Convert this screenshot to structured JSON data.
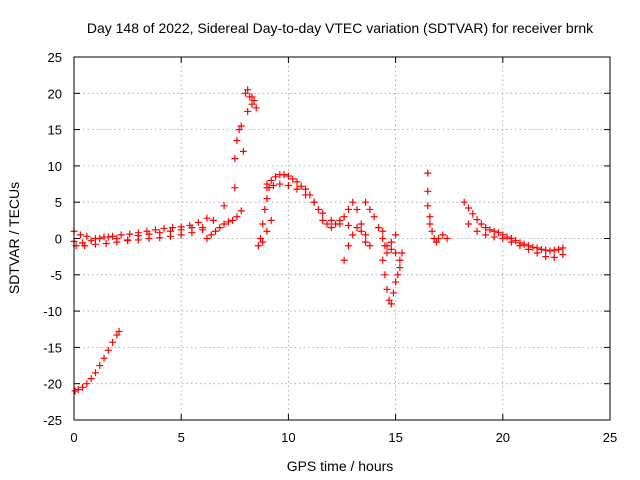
{
  "chart_data": {
    "type": "scatter",
    "title": "Day 148 of 2022, Sidereal Day-to-day VTEC variation (SDTVAR) for receiver brnk",
    "xlabel": "GPS time / hours",
    "ylabel": "SDTVAR / TECUs",
    "xlim": [
      0,
      25
    ],
    "ylim": [
      -25,
      25
    ],
    "xticks": [
      0,
      5,
      10,
      15,
      20,
      25
    ],
    "yticks": [
      -25,
      -20,
      -15,
      -10,
      -5,
      0,
      5,
      10,
      15,
      20,
      25
    ],
    "xtick_labels": [
      "0",
      "5",
      "10",
      "15",
      "20",
      "25"
    ],
    "ytick_labels": [
      "-25",
      "-20",
      "-15",
      "-10",
      "-5",
      "0",
      "5",
      "10",
      "15",
      "20",
      "25"
    ],
    "grid": true,
    "marker": "+",
    "color": "#ff0000",
    "series": [
      {
        "name": "SDTVAR",
        "x": [
          0.05,
          0.2,
          0.4,
          0.6,
          0.8,
          1.0,
          1.2,
          1.4,
          1.6,
          1.8,
          2.0,
          2.1,
          0.0,
          0.3,
          0.6,
          1.0,
          1.4,
          1.8,
          2.2,
          2.6,
          3.0,
          3.4,
          3.8,
          4.2,
          4.6,
          5.0,
          5.4,
          5.8,
          6.2,
          0.1,
          0.5,
          1.0,
          1.5,
          2.0,
          2.5,
          3.0,
          3.5,
          4.0,
          4.5,
          5.0,
          5.5,
          6.0,
          6.5,
          7.0,
          7.5,
          0.0,
          0.4,
          0.8,
          1.2,
          1.6,
          2.0,
          2.5,
          3.0,
          3.5,
          4.0,
          4.5,
          5.0,
          5.5,
          6.0,
          6.2,
          6.4,
          6.6,
          6.8,
          7.0,
          7.2,
          7.4,
          7.6,
          7.8,
          7.5,
          7.6,
          7.7,
          7.8,
          7.9,
          8.0,
          8.1,
          8.2,
          8.3,
          8.4,
          8.5,
          8.1,
          8.3,
          8.6,
          8.7,
          8.8,
          8.9,
          9.0,
          9.1,
          8.8,
          9.0,
          9.2,
          9.0,
          9.2,
          9.4,
          9.6,
          9.8,
          10.0,
          10.2,
          10.4,
          10.6,
          10.8,
          11.0,
          11.2,
          11.4,
          9.0,
          9.3,
          9.6,
          10.0,
          10.4,
          10.8,
          11.2,
          11.6,
          12.0,
          12.4,
          12.8,
          11.6,
          11.8,
          12.0,
          12.2,
          12.4,
          12.6,
          12.8,
          13.0,
          13.2,
          13.4,
          13.6,
          13.8,
          12.6,
          12.8,
          13.0,
          13.2,
          13.4,
          13.6,
          13.6,
          13.8,
          14.0,
          14.2,
          14.4,
          14.6,
          14.8,
          15.0,
          14.4,
          14.5,
          14.6,
          14.7,
          14.8,
          14.9,
          15.0,
          15.1,
          15.2,
          14.4,
          14.5,
          14.6,
          14.8,
          15.0,
          15.2,
          15.3,
          16.5,
          16.5,
          16.5,
          16.6,
          16.6,
          16.7,
          16.8,
          16.9,
          17.0,
          17.2,
          17.4,
          18.2,
          18.4,
          18.6,
          18.8,
          19.0,
          19.2,
          19.4,
          19.6,
          19.8,
          20.0,
          20.2,
          20.4,
          20.6,
          20.8,
          21.0,
          21.2,
          21.4,
          21.6,
          21.8,
          22.0,
          22.2,
          22.4,
          22.6,
          22.8,
          18.4,
          18.8,
          19.2,
          19.6,
          20.0,
          20.4,
          20.8,
          21.2,
          21.6,
          22.0,
          22.4,
          22.8
        ],
        "y": [
          -21.0,
          -20.8,
          -20.5,
          -20.0,
          -19.3,
          -18.5,
          -17.5,
          -16.5,
          -15.4,
          -14.3,
          -13.3,
          -12.8,
          1.0,
          0.5,
          0.3,
          0.0,
          0.2,
          0.3,
          0.5,
          0.6,
          0.8,
          1.0,
          1.2,
          1.4,
          1.5,
          1.6,
          1.8,
          2.2,
          2.8,
          -1.0,
          -1.0,
          -0.8,
          -0.7,
          -0.5,
          -0.3,
          -0.2,
          0.0,
          0.1,
          0.3,
          0.5,
          0.8,
          1.5,
          2.5,
          4.5,
          7.0,
          -0.4,
          -0.6,
          -0.3,
          0.0,
          0.2,
          0.0,
          -0.2,
          0.4,
          0.6,
          0.8,
          1.0,
          1.2,
          1.5,
          1.2,
          0.0,
          0.5,
          1.0,
          1.5,
          2.0,
          2.3,
          2.5,
          3.0,
          3.8,
          11.0,
          13.5,
          15.0,
          15.5,
          12.0,
          20.0,
          20.5,
          19.5,
          18.5,
          19.0,
          18.0,
          17.5,
          19.5,
          -1.0,
          0.0,
          2.0,
          4.0,
          5.5,
          7.0,
          -0.5,
          1.0,
          2.5,
          7.5,
          8.0,
          8.5,
          8.8,
          8.8,
          8.6,
          8.2,
          7.8,
          7.2,
          6.8,
          6.0,
          5.0,
          4.0,
          7.0,
          7.3,
          7.5,
          7.3,
          6.8,
          6.0,
          5.0,
          3.5,
          2.5,
          2.0,
          1.8,
          2.5,
          2.0,
          1.5,
          2.0,
          2.5,
          3.0,
          4.0,
          5.0,
          4.0,
          2.0,
          0.5,
          -1.0,
          -3.0,
          -1.0,
          0.5,
          1.5,
          1.0,
          -0.5,
          5.0,
          4.0,
          3.0,
          1.5,
          0.0,
          -1.0,
          -0.5,
          0.5,
          -3.0,
          -5.0,
          -7.0,
          -8.5,
          -9.0,
          -7.5,
          -6.0,
          -5.0,
          -4.0,
          1.0,
          -1.0,
          -2.0,
          -1.5,
          -2.0,
          -3.0,
          -2.0,
          9.0,
          6.5,
          4.5,
          3.0,
          2.0,
          1.0,
          0.0,
          -0.5,
          0.0,
          0.5,
          0.0,
          5.0,
          4.2,
          3.4,
          2.6,
          2.0,
          1.5,
          1.2,
          1.0,
          0.8,
          0.5,
          0.2,
          0.0,
          -0.3,
          -0.6,
          -0.8,
          -1.0,
          -1.2,
          -1.3,
          -1.5,
          -1.6,
          -1.7,
          -1.6,
          -1.5,
          -1.3,
          2.0,
          1.0,
          0.5,
          0.2,
          0.0,
          -0.5,
          -1.0,
          -1.5,
          -2.0,
          -2.5,
          -2.6,
          -2.2
        ]
      }
    ]
  }
}
